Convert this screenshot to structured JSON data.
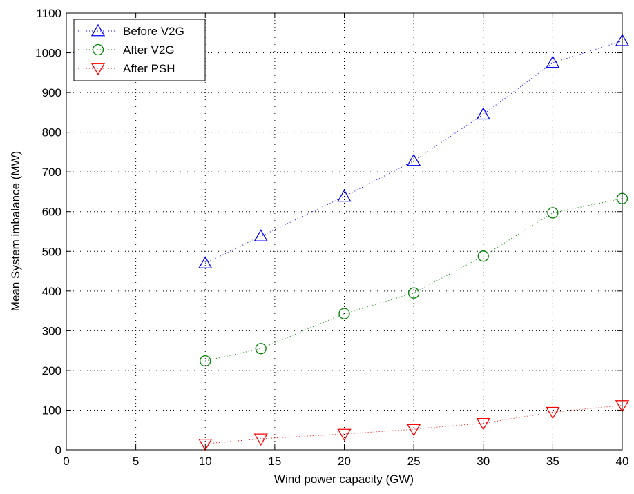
{
  "chart_data": {
    "type": "line",
    "title": "",
    "xlabel": "Wind power capacity (GW)",
    "ylabel": "Mean System imbalance (MW)",
    "xlim": [
      0,
      40
    ],
    "ylim": [
      0,
      1100
    ],
    "xticks": [
      0,
      5,
      10,
      15,
      20,
      25,
      30,
      35,
      40
    ],
    "yticks": [
      0,
      100,
      200,
      300,
      400,
      500,
      600,
      700,
      800,
      900,
      1000,
      1100
    ],
    "grid": true,
    "legend_position": "top-left",
    "x": [
      10,
      14,
      20,
      25,
      30,
      35,
      40
    ],
    "series": [
      {
        "name": "Before V2G",
        "color": "#0000ff",
        "marker": "triangle-up",
        "line_style": "dotted",
        "values": [
          470,
          538,
          638,
          728,
          845,
          975,
          1030
        ]
      },
      {
        "name": "After V2G",
        "color": "#008000",
        "marker": "circle",
        "line_style": "dotted",
        "values": [
          224,
          255,
          343,
          395,
          488,
          597,
          633
        ]
      },
      {
        "name": "After PSH",
        "color": "#ff0000",
        "marker": "triangle-down",
        "line_style": "dotted",
        "values": [
          15,
          28,
          40,
          52,
          67,
          95,
          112
        ]
      }
    ]
  }
}
